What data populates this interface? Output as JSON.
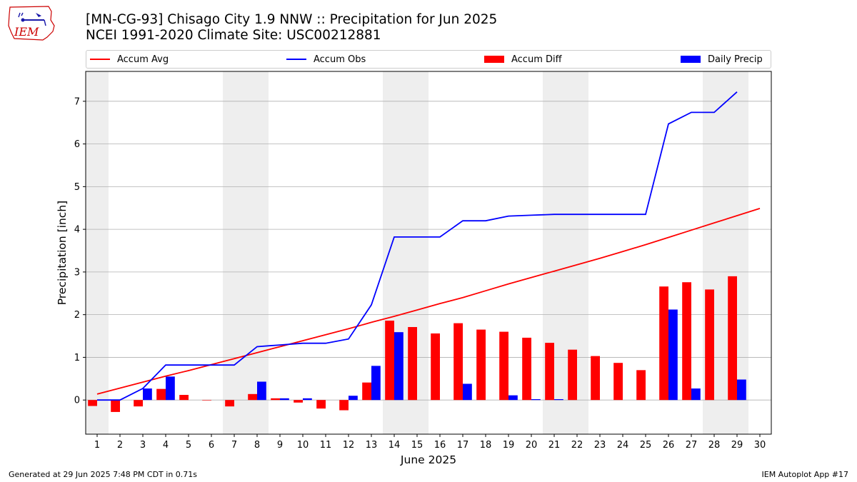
{
  "header": {
    "title_line1": "[MN-CG-93] Chisago City 1.9 NNW :: Precipitation for Jun 2025",
    "title_line2": "NCEI 1991-2020 Climate Site: USC00212881",
    "logo_text": "IEM"
  },
  "footer": {
    "generated": "Generated at 29 Jun 2025 7:48 PM CDT in 0.71s",
    "app": "IEM Autoplot App #17"
  },
  "colors": {
    "accum_avg": "#ff0000",
    "accum_obs": "#0000ff",
    "accum_diff": "#ff0000",
    "daily_precip": "#0000ff",
    "weekend_shade": "#eeeeee",
    "grid": "#b0b0b0"
  },
  "chart_data": {
    "type": "bar",
    "xlabel": "June 2025",
    "ylabel": "Precipitation [inch]",
    "ylim": [
      -0.8,
      7.7
    ],
    "xlim": [
      0.5,
      30.5
    ],
    "yticks": [
      0,
      1,
      2,
      3,
      4,
      5,
      6,
      7
    ],
    "x": [
      1,
      2,
      3,
      4,
      5,
      6,
      7,
      8,
      9,
      10,
      11,
      12,
      13,
      14,
      15,
      16,
      17,
      18,
      19,
      20,
      21,
      22,
      23,
      24,
      25,
      26,
      27,
      28,
      29,
      30
    ],
    "grid": "horizontal",
    "legend_position": "top",
    "weekend_shaded_days": [
      [
        1,
        1
      ],
      [
        7,
        8
      ],
      [
        14,
        15
      ],
      [
        21,
        22
      ],
      [
        28,
        29
      ]
    ],
    "series": [
      {
        "name": "Accum Avg",
        "kind": "line",
        "x": [
          1,
          2,
          3,
          4,
          5,
          6,
          7,
          8,
          9,
          10,
          11,
          12,
          13,
          14,
          15,
          16,
          17,
          18,
          19,
          20,
          21,
          22,
          23,
          24,
          25,
          26,
          27,
          28,
          29,
          30
        ],
        "values": [
          0.14,
          0.28,
          0.42,
          0.56,
          0.69,
          0.83,
          0.97,
          1.11,
          1.25,
          1.39,
          1.53,
          1.67,
          1.82,
          1.96,
          2.11,
          2.26,
          2.4,
          2.56,
          2.72,
          2.87,
          3.02,
          3.17,
          3.32,
          3.48,
          3.64,
          3.81,
          3.98,
          4.15,
          4.32,
          4.49
        ]
      },
      {
        "name": "Accum Obs",
        "kind": "line",
        "x": [
          1,
          2,
          3,
          4,
          5,
          6,
          7,
          8,
          9,
          10,
          11,
          12,
          13,
          14,
          15,
          16,
          17,
          18,
          19,
          20,
          21,
          22,
          23,
          24,
          25,
          26,
          27,
          28,
          29
        ],
        "values": [
          0.0,
          0.0,
          0.27,
          0.82,
          0.82,
          0.82,
          0.82,
          1.25,
          1.29,
          1.33,
          1.33,
          1.43,
          2.23,
          3.82,
          3.82,
          3.82,
          4.2,
          4.2,
          4.31,
          4.33,
          4.35,
          4.35,
          4.35,
          4.35,
          4.35,
          6.47,
          6.74,
          6.74,
          7.22
        ]
      },
      {
        "name": "Accum Diff",
        "kind": "bar",
        "x": [
          1,
          2,
          3,
          4,
          5,
          6,
          7,
          8,
          9,
          10,
          11,
          12,
          13,
          14,
          15,
          16,
          17,
          18,
          19,
          20,
          21,
          22,
          23,
          24,
          25,
          26,
          27,
          28,
          29
        ],
        "values": [
          -0.14,
          -0.28,
          -0.15,
          0.26,
          0.12,
          -0.01,
          -0.15,
          0.14,
          0.04,
          -0.06,
          -0.2,
          -0.24,
          0.41,
          1.86,
          1.71,
          1.56,
          1.8,
          1.65,
          1.6,
          1.46,
          1.34,
          1.18,
          1.03,
          0.87,
          0.7,
          2.66,
          2.76,
          2.59,
          2.9
        ]
      },
      {
        "name": "Daily Precip",
        "kind": "bar",
        "x": [
          1,
          2,
          3,
          4,
          5,
          6,
          7,
          8,
          9,
          10,
          11,
          12,
          13,
          14,
          15,
          16,
          17,
          18,
          19,
          20,
          21,
          22,
          23,
          24,
          25,
          26,
          27,
          28,
          29
        ],
        "values": [
          0.0,
          0.0,
          0.27,
          0.55,
          0.0,
          0.0,
          0.0,
          0.43,
          0.04,
          0.04,
          0.0,
          0.1,
          0.8,
          1.59,
          0.0,
          0.0,
          0.38,
          0.0,
          0.11,
          0.02,
          0.02,
          0.0,
          0.0,
          0.0,
          0.0,
          2.12,
          0.27,
          0.0,
          0.48
        ]
      }
    ]
  }
}
